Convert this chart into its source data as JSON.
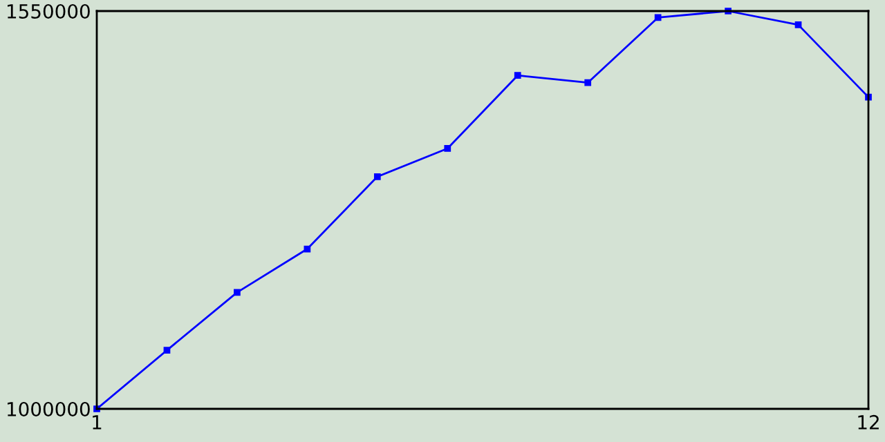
{
  "chart_data": {
    "type": "line",
    "x": [
      1,
      2,
      3,
      4,
      5,
      6,
      7,
      8,
      9,
      10,
      11,
      12
    ],
    "series": [
      {
        "color": "#0000ff",
        "values": [
          1000000,
          1081000,
          1161000,
          1221000,
          1321000,
          1360000,
          1461000,
          1451000,
          1541000,
          1550000,
          1531000,
          1431000
        ]
      }
    ],
    "xlim": [
      1,
      12
    ],
    "xticks": [
      1,
      12
    ],
    "ylim": [
      1000000,
      1550000
    ],
    "yticks": [
      1000000,
      1550000
    ],
    "marker": "square",
    "line_style": "solid",
    "legend": false
  }
}
